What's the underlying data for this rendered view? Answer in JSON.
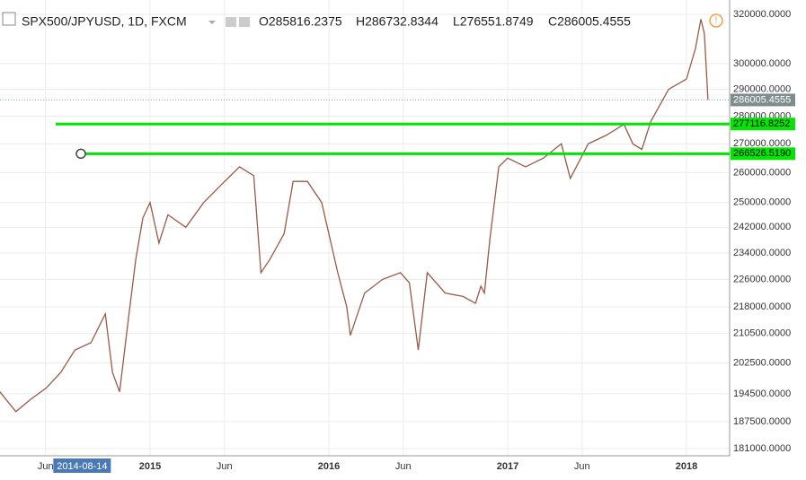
{
  "chart_data": {
    "type": "line",
    "title": "SPX500/JPYUSD, 1D, FXCM",
    "ohlc_labels": [
      "O285816.2375",
      "H286732.8344",
      "L276551.8749",
      "C286005.4555"
    ],
    "log_scale": true,
    "grid": true,
    "color": "#9a5a48",
    "x": [
      2014.16,
      2014.25,
      2014.33,
      2014.42,
      2014.5,
      2014.58,
      2014.67,
      2014.75,
      2014.79,
      2014.83,
      2014.88,
      2014.92,
      2014.96,
      2015.0,
      2015.05,
      2015.1,
      2015.2,
      2015.3,
      2015.4,
      2015.5,
      2015.58,
      2015.62,
      2015.67,
      2015.75,
      2015.8,
      2015.88,
      2015.96,
      2016.05,
      2016.1,
      2016.12,
      2016.2,
      2016.3,
      2016.4,
      2016.45,
      2016.5,
      2016.55,
      2016.65,
      2016.75,
      2016.82,
      2016.85,
      2016.87,
      2016.9,
      2016.95,
      2017.0,
      2017.1,
      2017.2,
      2017.3,
      2017.35,
      2017.45,
      2017.55,
      2017.65,
      2017.7,
      2017.75,
      2017.8,
      2017.9,
      2018.0,
      2018.05,
      2018.08,
      2018.1,
      2018.12
    ],
    "values": [
      195000,
      190000,
      193000,
      196000,
      200000,
      206000,
      208000,
      216000,
      200000,
      195000,
      215000,
      232000,
      245000,
      250000,
      237000,
      246000,
      242000,
      250000,
      256000,
      262000,
      259000,
      228000,
      232000,
      240000,
      257000,
      257000,
      250000,
      228000,
      218000,
      210000,
      222000,
      226000,
      228000,
      225000,
      206000,
      228000,
      222000,
      221000,
      219000,
      224000,
      222000,
      238000,
      262000,
      265000,
      262000,
      265000,
      270000,
      258000,
      270000,
      273000,
      277000,
      270000,
      268000,
      278000,
      290000,
      294000,
      306000,
      318000,
      312000,
      286005.4555
    ],
    "xlim": [
      2014.161,
      2018.241
    ],
    "xticks": [
      {
        "value": 2014.416,
        "label": "Jun"
      },
      {
        "value": 2015,
        "label": "2015"
      },
      {
        "value": 2015.416,
        "label": "Jun"
      },
      {
        "value": 2016,
        "label": "2016"
      },
      {
        "value": 2016.416,
        "label": "Jun"
      },
      {
        "value": 2017,
        "label": "2017"
      },
      {
        "value": 2017.416,
        "label": "Jun"
      },
      {
        "value": 2018,
        "label": "2018"
      }
    ],
    "ylim": [
      179300,
      326100
    ],
    "yticks": [
      {
        "value": 181000,
        "label": "181000.0000"
      },
      {
        "value": 187500,
        "label": "187500.0000"
      },
      {
        "value": 194500,
        "label": "194500.0000"
      },
      {
        "value": 202500,
        "label": "202500.0000"
      },
      {
        "value": 210500,
        "label": "210500.0000"
      },
      {
        "value": 218000,
        "label": "218000.0000"
      },
      {
        "value": 226000,
        "label": "226000.0000"
      },
      {
        "value": 234000,
        "label": "234000.0000"
      },
      {
        "value": 242000,
        "label": "242000.0000"
      },
      {
        "value": 250000,
        "label": "250000.0000"
      },
      {
        "value": 260000,
        "label": "260000.0000"
      },
      {
        "value": 270000,
        "label": "270000.0000"
      },
      {
        "value": 280000,
        "label": "280000.0000"
      },
      {
        "value": 290000,
        "label": "290000.0000"
      },
      {
        "value": 300000,
        "label": "300000.0000"
      },
      {
        "value": 320000,
        "label": "320000.0000"
      }
    ],
    "crosshair": {
      "value": 2014.62,
      "label": "2014-08-14"
    },
    "last_price": {
      "value": 286005.4555,
      "label": "286005.4555"
    },
    "horizontal_lines": [
      {
        "value": 277116.8252,
        "label": "277116.8252",
        "color": "#00e600"
      },
      {
        "value": 266526.519,
        "label": "266526.5190",
        "color": "#00e600"
      }
    ]
  }
}
